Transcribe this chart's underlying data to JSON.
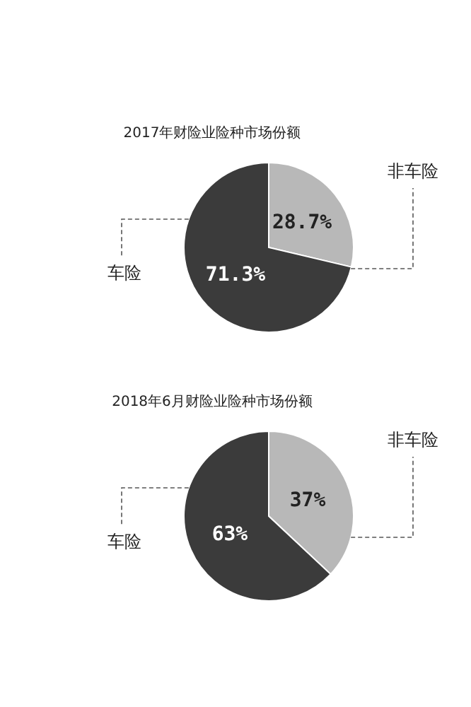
{
  "chart_data": [
    {
      "type": "pie",
      "title": "2017年财险业险种市场份额",
      "categories": [
        "非车险",
        "车险"
      ],
      "values": [
        28.7,
        71.3
      ],
      "colors": [
        "#b8b8b8",
        "#3b3b3b"
      ],
      "value_labels": [
        "28.7%",
        "71.3%"
      ]
    },
    {
      "type": "pie",
      "title": "2018年6月财险业险种市场份额",
      "categories": [
        "非车险",
        "车险"
      ],
      "values": [
        37,
        63
      ],
      "colors": [
        "#b8b8b8",
        "#3b3b3b"
      ],
      "value_labels": [
        "37%",
        "63%"
      ]
    }
  ]
}
